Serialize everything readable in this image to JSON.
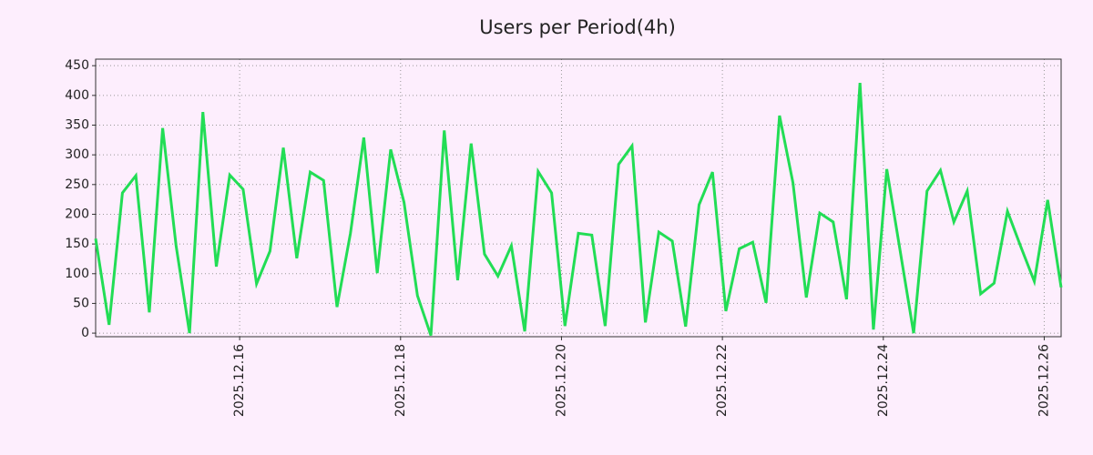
{
  "chart_data": {
    "type": "line",
    "title": "Users per Period(4h)",
    "x": [
      14.21,
      14.377,
      14.543,
      14.71,
      14.877,
      15.043,
      15.21,
      15.377,
      15.543,
      15.71,
      15.877,
      16.043,
      16.21,
      16.377,
      16.543,
      16.71,
      16.877,
      17.043,
      17.21,
      17.377,
      17.543,
      17.71,
      17.877,
      18.043,
      18.21,
      18.377,
      18.543,
      18.71,
      18.877,
      19.043,
      19.21,
      19.377,
      19.543,
      19.71,
      19.877,
      20.043,
      20.21,
      20.377,
      20.543,
      20.71,
      20.877,
      21.043,
      21.21,
      21.377,
      21.543,
      21.71,
      21.877,
      22.043,
      22.21,
      22.377,
      22.543,
      22.71,
      22.877,
      23.043,
      23.21,
      23.377,
      23.543,
      23.71,
      23.877,
      24.043,
      24.21,
      24.377,
      24.543,
      24.71,
      24.877,
      25.043,
      25.21,
      25.377,
      25.543,
      25.71,
      25.877,
      26.043,
      26.21
    ],
    "series": [
      {
        "name": "Users",
        "color": "#22dd55",
        "values": [
          159,
          14,
          236,
          265,
          35,
          345,
          147,
          0,
          372,
          112,
          266,
          242,
          83,
          138,
          312,
          126,
          271,
          257,
          44,
          168,
          329,
          101,
          309,
          220,
          63,
          -4,
          341,
          89,
          319,
          133,
          96,
          147,
          3,
          272,
          236,
          12,
          168,
          165,
          12,
          284,
          315,
          18,
          170,
          155,
          11,
          216,
          271,
          37,
          142,
          153,
          51,
          366,
          253,
          60,
          202,
          187,
          57,
          421,
          6,
          276,
          138,
          0,
          239,
          274,
          187,
          239,
          66,
          84,
          205,
          145,
          87,
          224,
          77
        ]
      }
    ],
    "xlim": [
      14.21,
      26.21
    ],
    "xticks": [
      {
        "value": 16,
        "label": "2025.12.16"
      },
      {
        "value": 18,
        "label": "2025.12.18"
      },
      {
        "value": 20,
        "label": "2025.12.20"
      },
      {
        "value": 22,
        "label": "2025.12.22"
      },
      {
        "value": 24,
        "label": "2025.12.24"
      },
      {
        "value": 26,
        "label": "2025.12.26"
      }
    ],
    "ylim": [
      -6,
      461
    ],
    "yticks": [
      0,
      50,
      100,
      150,
      200,
      250,
      300,
      350,
      400,
      450
    ],
    "grid": true
  }
}
